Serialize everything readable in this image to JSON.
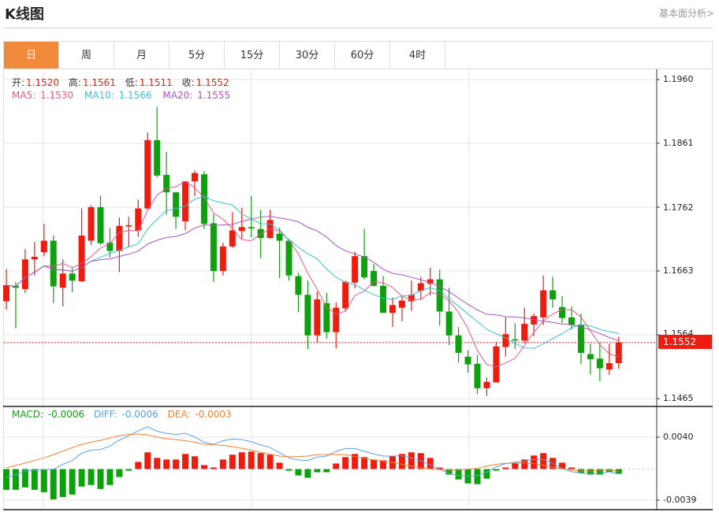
{
  "header": {
    "title": "K线图",
    "link": "基本面分析>"
  },
  "tabs": [
    {
      "label": "日",
      "active": true
    },
    {
      "label": "周"
    },
    {
      "label": "月"
    },
    {
      "label": "5分"
    },
    {
      "label": "15分"
    },
    {
      "label": "30分"
    },
    {
      "label": "60分"
    },
    {
      "label": "4时"
    }
  ],
  "legend": {
    "open_label": "开:",
    "open": "1.1520",
    "high_label": "高:",
    "high": "1.1561",
    "low_label": "低:",
    "low": "1.1511",
    "close_label": "收:",
    "close": "1.1552",
    "ma5_label": "MA5: ",
    "ma5": "1.1530",
    "ma10_label": "MA10: ",
    "ma10": "1.1566",
    "ma20_label": "MA20: ",
    "ma20": "1.1555",
    "macd_label": "MACD: ",
    "macd": "-0.0006",
    "diff_label": "DIFF: ",
    "diff": "-0.0006",
    "dea_label": "DEA: ",
    "dea": "-0.0003"
  },
  "colors": {
    "up": "#ee1c0e",
    "down": "#0ea10e",
    "ma5": "#e8558a",
    "ma10": "#3bbfd0",
    "ma20": "#a556c0",
    "diff": "#5aa0e0",
    "dea": "#f08030",
    "active_tab": "#f18a3a"
  },
  "chart_data": [
    {
      "type": "candlestick",
      "ohlc_order": [
        "open",
        "high",
        "low",
        "close"
      ],
      "ylim": [
        1.1465,
        1.196
      ],
      "y_ticks": [
        "1.1960",
        "1.1861",
        "1.1762",
        "1.1663",
        "1.1564",
        "1.1465"
      ],
      "current_price": "1.1552",
      "moving_averages": [
        5,
        10,
        20
      ],
      "grid": true,
      "candles": [
        [
          1.1616,
          1.1666,
          1.1603,
          1.1641
        ],
        [
          1.164,
          1.1646,
          1.1574,
          1.1637
        ],
        [
          1.1635,
          1.1697,
          1.1629,
          1.1681
        ],
        [
          1.1681,
          1.1708,
          1.1656,
          1.1685
        ],
        [
          1.1692,
          1.1736,
          1.1686,
          1.171
        ],
        [
          1.171,
          1.1718,
          1.1613,
          1.1639
        ],
        [
          1.1637,
          1.1681,
          1.1608,
          1.1659
        ],
        [
          1.1659,
          1.1668,
          1.163,
          1.1648
        ],
        [
          1.1647,
          1.176,
          1.1646,
          1.1718
        ],
        [
          1.171,
          1.1765,
          1.1703,
          1.1762
        ],
        [
          1.1762,
          1.178,
          1.1703,
          1.1706
        ],
        [
          1.1707,
          1.173,
          1.1684,
          1.1694
        ],
        [
          1.1694,
          1.1746,
          1.1661,
          1.1733
        ],
        [
          1.1732,
          1.1747,
          1.1701,
          1.1734
        ],
        [
          1.1726,
          1.1774,
          1.1716,
          1.176
        ],
        [
          1.176,
          1.1878,
          1.1759,
          1.1866
        ],
        [
          1.1866,
          1.1918,
          1.1808,
          1.1811
        ],
        [
          1.1812,
          1.1848,
          1.175,
          1.1785
        ],
        [
          1.1785,
          1.1786,
          1.1728,
          1.1747
        ],
        [
          1.174,
          1.1802,
          1.1726,
          1.1802
        ],
        [
          1.1802,
          1.1819,
          1.1779,
          1.1815
        ],
        [
          1.1813,
          1.1818,
          1.1728,
          1.1736
        ],
        [
          1.1737,
          1.1751,
          1.1646,
          1.1663
        ],
        [
          1.1663,
          1.1707,
          1.1656,
          1.1701
        ],
        [
          1.1701,
          1.1754,
          1.1699,
          1.1726
        ],
        [
          1.1725,
          1.1761,
          1.1713,
          1.1731
        ],
        [
          1.1731,
          1.1779,
          1.1715,
          1.1729
        ],
        [
          1.1728,
          1.1758,
          1.1683,
          1.1714
        ],
        [
          1.1714,
          1.1758,
          1.1713,
          1.1742
        ],
        [
          1.1721,
          1.173,
          1.1652,
          1.171
        ],
        [
          1.171,
          1.1713,
          1.1648,
          1.1656
        ],
        [
          1.1655,
          1.166,
          1.1599,
          1.1626
        ],
        [
          1.1626,
          1.1648,
          1.1542,
          1.1563
        ],
        [
          1.1563,
          1.1631,
          1.1552,
          1.1619
        ],
        [
          1.1613,
          1.1629,
          1.1558,
          1.1568
        ],
        [
          1.1568,
          1.1614,
          1.1543,
          1.1606
        ],
        [
          1.1605,
          1.1648,
          1.1601,
          1.1646
        ],
        [
          1.1645,
          1.1693,
          1.1636,
          1.1686
        ],
        [
          1.1686,
          1.1728,
          1.165,
          1.1653
        ],
        [
          1.1663,
          1.1674,
          1.1639,
          1.164
        ],
        [
          1.164,
          1.1655,
          1.1598,
          1.1598
        ],
        [
          1.1598,
          1.1622,
          1.1576,
          1.161
        ],
        [
          1.1606,
          1.1623,
          1.1585,
          1.1617
        ],
        [
          1.1616,
          1.1648,
          1.1601,
          1.1626
        ],
        [
          1.1632,
          1.1654,
          1.1618,
          1.1644
        ],
        [
          1.1643,
          1.1668,
          1.1625,
          1.165
        ],
        [
          1.165,
          1.1665,
          1.1578,
          1.16
        ],
        [
          1.16,
          1.1637,
          1.1548,
          1.1563
        ],
        [
          1.1563,
          1.1576,
          1.1521,
          1.1536
        ],
        [
          1.153,
          1.154,
          1.1505,
          1.1518
        ],
        [
          1.1519,
          1.1533,
          1.1472,
          1.1481
        ],
        [
          1.1481,
          1.1498,
          1.1469,
          1.1491
        ],
        [
          1.149,
          1.1553,
          1.149,
          1.1546
        ],
        [
          1.1545,
          1.1591,
          1.153,
          1.1565
        ],
        [
          1.1557,
          1.1582,
          1.1542,
          1.1555
        ],
        [
          1.1555,
          1.1606,
          1.1551,
          1.1581
        ],
        [
          1.158,
          1.1597,
          1.1562,
          1.1593
        ],
        [
          1.1591,
          1.1656,
          1.1579,
          1.1633
        ],
        [
          1.1633,
          1.1654,
          1.1606,
          1.1619
        ],
        [
          1.1607,
          1.1624,
          1.1582,
          1.159
        ],
        [
          1.1591,
          1.1608,
          1.1572,
          1.1579
        ],
        [
          1.158,
          1.1597,
          1.1518,
          1.1536
        ],
        [
          1.1534,
          1.155,
          1.1502,
          1.1526
        ],
        [
          1.1527,
          1.1552,
          1.1492,
          1.1512
        ],
        [
          1.151,
          1.155,
          1.1502,
          1.152
        ],
        [
          1.152,
          1.1561,
          1.1511,
          1.1552
        ]
      ]
    },
    {
      "type": "bar",
      "name": "MACD",
      "ylim": [
        -0.0039,
        0.004
      ],
      "y_ticks": [
        "0.0040",
        "-0.0039"
      ],
      "macd": [
        -0.0026,
        -0.0026,
        -0.0023,
        -0.0026,
        -0.0029,
        -0.0038,
        -0.0035,
        -0.0032,
        -0.0022,
        -0.002,
        -0.0025,
        -0.002,
        -0.001,
        -0.0002,
        0.0009,
        0.0021,
        0.0014,
        0.0012,
        0.0012,
        0.0019,
        0.0016,
        0.0005,
        0.0002,
        0.0012,
        0.0018,
        0.0021,
        0.0022,
        0.002,
        0.0018,
        0.0008,
        -0.0002,
        -0.0008,
        -0.0011,
        -0.0004,
        -0.0004,
        0.0007,
        0.0015,
        0.0019,
        0.0015,
        0.0012,
        0.0011,
        0.0016,
        0.0019,
        0.0021,
        0.002,
        0.0014,
        0.0002,
        -0.0007,
        -0.0013,
        -0.0018,
        -0.0019,
        -0.0012,
        -0.0002,
        0.0002,
        0.0007,
        0.0012,
        0.0017,
        0.002,
        0.0014,
        0.0008,
        0.0002,
        -0.0005,
        -0.0007,
        -0.0007,
        -0.0004,
        -0.0006
      ],
      "diff": [
        -0.00105,
        -0.00072,
        -0.00023,
        -0.00013,
        -7e-05,
        -3e-05,
        0.00059,
        0.00108,
        0.00199,
        0.00239,
        0.00245,
        0.00288,
        0.00363,
        0.00418,
        0.0048,
        0.0053,
        0.00474,
        0.00448,
        0.00435,
        0.00448,
        0.00402,
        0.00337,
        0.0031,
        0.00356,
        0.00376,
        0.00369,
        0.00343,
        0.00304,
        0.00271,
        0.00206,
        0.0014,
        0.00114,
        0.00108,
        0.0015,
        0.00163,
        0.00222,
        0.00258,
        0.00258,
        0.00222,
        0.0019,
        0.00163,
        0.00163,
        0.00167,
        0.0014,
        0.00108,
        0.00049,
        0.0,
        -0.00056,
        -0.00082,
        -0.00085,
        -0.00082,
        -0.00039,
        0.00026,
        0.00069,
        0.00085,
        0.00101,
        0.00121,
        0.00118,
        0.00075,
        0.0001,
        -0.00033,
        -0.00049,
        -0.00059,
        -0.00059,
        -0.00033,
        -0.0006
      ],
      "dea": [
        0.00016,
        0.00046,
        0.00075,
        0.00108,
        0.0014,
        0.0018,
        0.00225,
        0.0027,
        0.0031,
        0.00337,
        0.0036,
        0.0039,
        0.0042,
        0.00435,
        0.0044,
        0.0043,
        0.004,
        0.0038,
        0.0037,
        0.00356,
        0.00337,
        0.0031,
        0.00304,
        0.00297,
        0.0028,
        0.0026,
        0.0024,
        0.0021,
        0.00186,
        0.00163,
        0.00154,
        0.00157,
        0.00163,
        0.0018,
        0.00183,
        0.00183,
        0.0018,
        0.00157,
        0.00134,
        0.00114,
        0.00098,
        0.00082,
        0.00059,
        0.00036,
        0.00016,
        3e-05,
        -7e-05,
        -0.00013,
        -0.0001,
        -3e-05,
        0.0001,
        0.00036,
        0.00059,
        0.00072,
        0.00075,
        0.00075,
        0.00069,
        0.00049,
        0.00026,
        3e-05,
        -0.00013,
        -0.00023,
        -0.00023,
        -0.00016,
        -0.0001,
        -0.0003
      ]
    }
  ]
}
